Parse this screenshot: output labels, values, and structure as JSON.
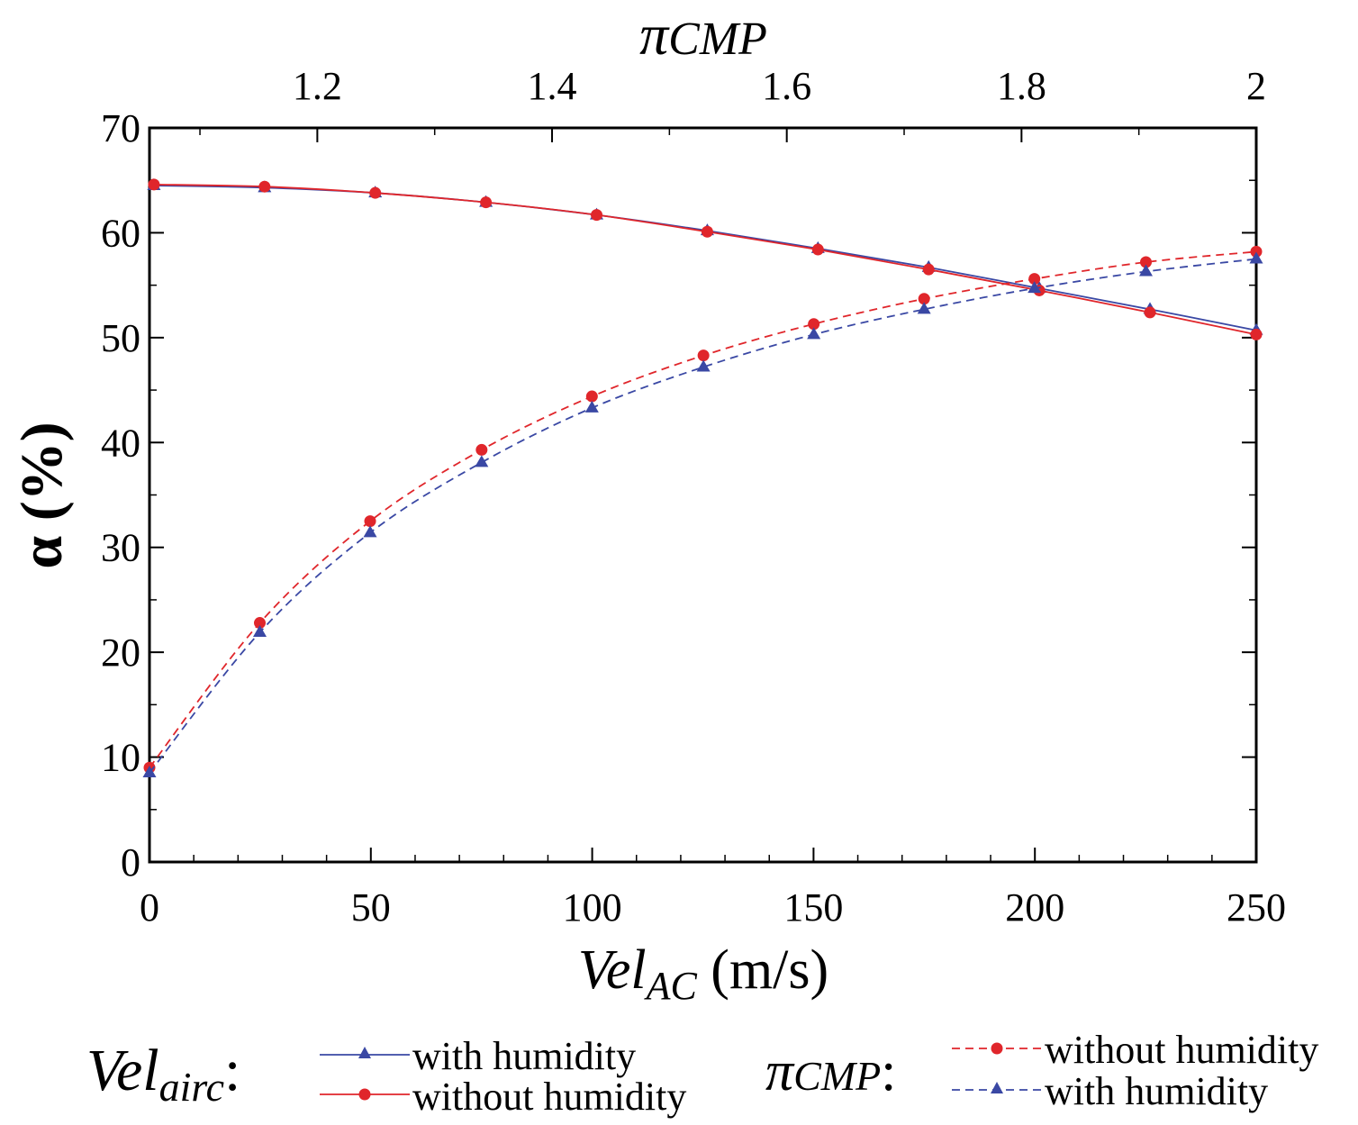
{
  "chart_data": {
    "type": "line",
    "bottom_axis": {
      "label_main": "Vel",
      "label_sub": "AC",
      "label_unit": " (m/s)",
      "range": [
        0,
        250
      ],
      "ticks": [
        0,
        50,
        100,
        150,
        200,
        250
      ],
      "tick_labels": [
        "0",
        "50",
        "100",
        "150",
        "200",
        "250"
      ]
    },
    "top_axis": {
      "label_pi": "π",
      "label_rest": "CMP",
      "range": [
        1.057,
        2.0
      ],
      "ticks": [
        1.2,
        1.4,
        1.6,
        1.8,
        2.0
      ],
      "tick_labels": [
        "1.2",
        "1.4",
        "1.6",
        "1.8",
        "2"
      ]
    },
    "y_axis": {
      "label": "α (%)",
      "range": [
        0,
        70
      ],
      "ticks": [
        0,
        10,
        20,
        30,
        40,
        50,
        60,
        70
      ],
      "tick_labels": [
        "0",
        "10",
        "20",
        "30",
        "40",
        "50",
        "60",
        "70"
      ]
    },
    "series": [
      {
        "name": "with humidity",
        "group": "vel_airc",
        "x_axis": "bottom",
        "color": "#3a48a4",
        "dash": "solid",
        "marker": "triangle",
        "x": [
          1,
          26,
          51,
          76,
          101,
          126,
          151,
          176,
          201,
          226,
          250
        ],
        "y": [
          64.5,
          64.3,
          63.8,
          62.9,
          61.7,
          60.2,
          58.5,
          56.7,
          54.7,
          52.7,
          50.7
        ]
      },
      {
        "name": "without humidity",
        "group": "vel_airc",
        "x_axis": "bottom",
        "color": "#e0262b",
        "dash": "solid",
        "marker": "circle",
        "x": [
          1,
          26,
          51,
          76,
          101,
          126,
          151,
          176,
          201,
          226,
          250
        ],
        "y": [
          64.6,
          64.4,
          63.8,
          62.9,
          61.7,
          60.1,
          58.4,
          56.5,
          54.5,
          52.4,
          50.3
        ]
      },
      {
        "name": "without humidity",
        "group": "pi_cmp",
        "x_axis": "top",
        "color": "#e0262b",
        "dash": "dashed",
        "marker": "circle",
        "x": [
          1.057,
          1.151,
          1.245,
          1.34,
          1.434,
          1.529,
          1.623,
          1.717,
          1.811,
          1.906,
          2.0
        ],
        "y": [
          9.0,
          22.8,
          32.5,
          39.3,
          44.4,
          48.3,
          51.3,
          53.7,
          55.6,
          57.2,
          58.2
        ]
      },
      {
        "name": "with humidity",
        "group": "pi_cmp",
        "x_axis": "top",
        "color": "#3a48a4",
        "dash": "dashed",
        "marker": "triangle",
        "x": [
          1.057,
          1.151,
          1.245,
          1.34,
          1.434,
          1.529,
          1.623,
          1.717,
          1.811,
          1.906,
          2.0
        ],
        "y": [
          8.5,
          21.9,
          31.4,
          38.1,
          43.3,
          47.2,
          50.3,
          52.7,
          54.7,
          56.3,
          57.5
        ]
      }
    ],
    "legend": {
      "position": "bottom",
      "group1_label_main": "Vel",
      "group1_label_sub": "airc",
      "group1_colon": ":",
      "group1_entries": [
        "with humidity",
        "without humidity"
      ],
      "group2_label_pi": "π",
      "group2_label_rest": "CMP",
      "group2_colon": ":",
      "group2_entries": [
        "without humidity",
        "with humidity"
      ]
    }
  }
}
